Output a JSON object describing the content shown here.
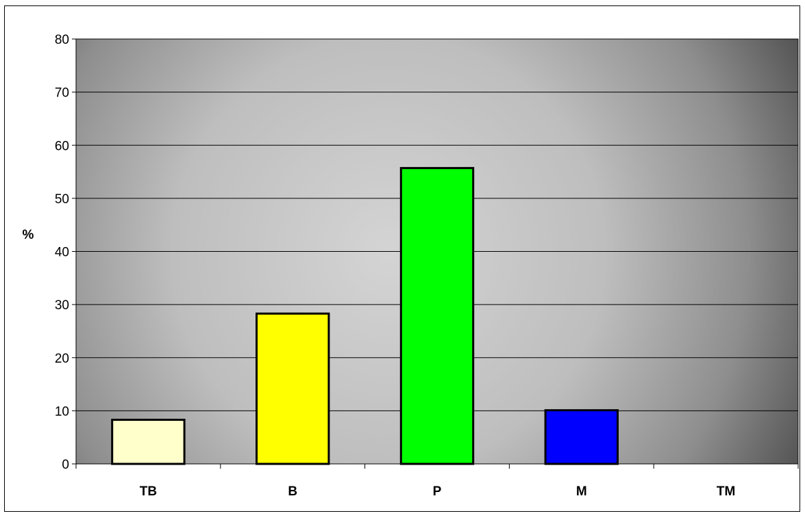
{
  "chart_data": {
    "type": "bar",
    "title": "",
    "xlabel": "",
    "ylabel": "%",
    "categories": [
      "TB",
      "B",
      "P",
      "M",
      "TM"
    ],
    "values": [
      8.3,
      28.3,
      55.7,
      10.1,
      0
    ],
    "ylim": [
      0,
      80
    ],
    "yticks": [
      0,
      10,
      20,
      30,
      40,
      50,
      60,
      70,
      80
    ],
    "grid": true,
    "legend": "none",
    "colors": [
      "#FFFFCC",
      "#FFFF00",
      "#00FF00",
      "#0000FF",
      "#808080"
    ],
    "background": "gray-gradient"
  }
}
